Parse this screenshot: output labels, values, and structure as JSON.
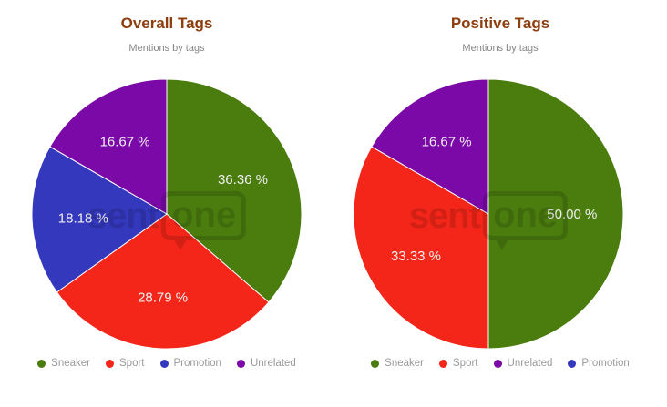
{
  "theme": {
    "background": "#ffffff",
    "title_color": "#8e3d0e",
    "subtitle_color": "#858585",
    "legend_text_color": "#9a9a9a",
    "slice_label_color": "#f0f0f0",
    "slice_border_color": "#ffffff"
  },
  "watermark": {
    "text_left": "sent",
    "text_bubble": "one"
  },
  "chart_data": [
    {
      "type": "pie",
      "title": "Overall Tags",
      "subtitle": "Mentions by tags",
      "labels": [
        "Sneaker",
        "Sport",
        "Promotion",
        "Unrelated"
      ],
      "values": [
        36.36,
        28.79,
        18.18,
        16.67
      ],
      "display_values": [
        "36.36 %",
        "28.79 %",
        "18.18 %",
        "16.67 %"
      ],
      "colors": [
        "#4a7c0e",
        "#f42519",
        "#3438bd",
        "#7b09a7"
      ],
      "start_angle": 0,
      "direction": "clockwise",
      "legend_position": "bottom",
      "legend": [
        {
          "label": "Sneaker",
          "color": "#4a7c0e"
        },
        {
          "label": "Sport",
          "color": "#f42519"
        },
        {
          "label": "Promotion",
          "color": "#3438bd"
        },
        {
          "label": "Unrelated",
          "color": "#7b09a7"
        }
      ]
    },
    {
      "type": "pie",
      "title": "Positive Tags",
      "subtitle": "Mentions by tags",
      "labels": [
        "Sneaker",
        "Sport",
        "Unrelated"
      ],
      "values": [
        50.0,
        33.33,
        16.67
      ],
      "display_values": [
        "50.00 %",
        "33.33 %",
        "16.67 %"
      ],
      "colors": [
        "#4a7c0e",
        "#f42519",
        "#7b09a7"
      ],
      "start_angle": 0,
      "direction": "clockwise",
      "legend_position": "bottom",
      "legend": [
        {
          "label": "Sneaker",
          "color": "#4a7c0e"
        },
        {
          "label": "Sport",
          "color": "#f42519"
        },
        {
          "label": "Unrelated",
          "color": "#7b09a7"
        },
        {
          "label": "Promotion",
          "color": "#3438bd"
        }
      ]
    }
  ]
}
